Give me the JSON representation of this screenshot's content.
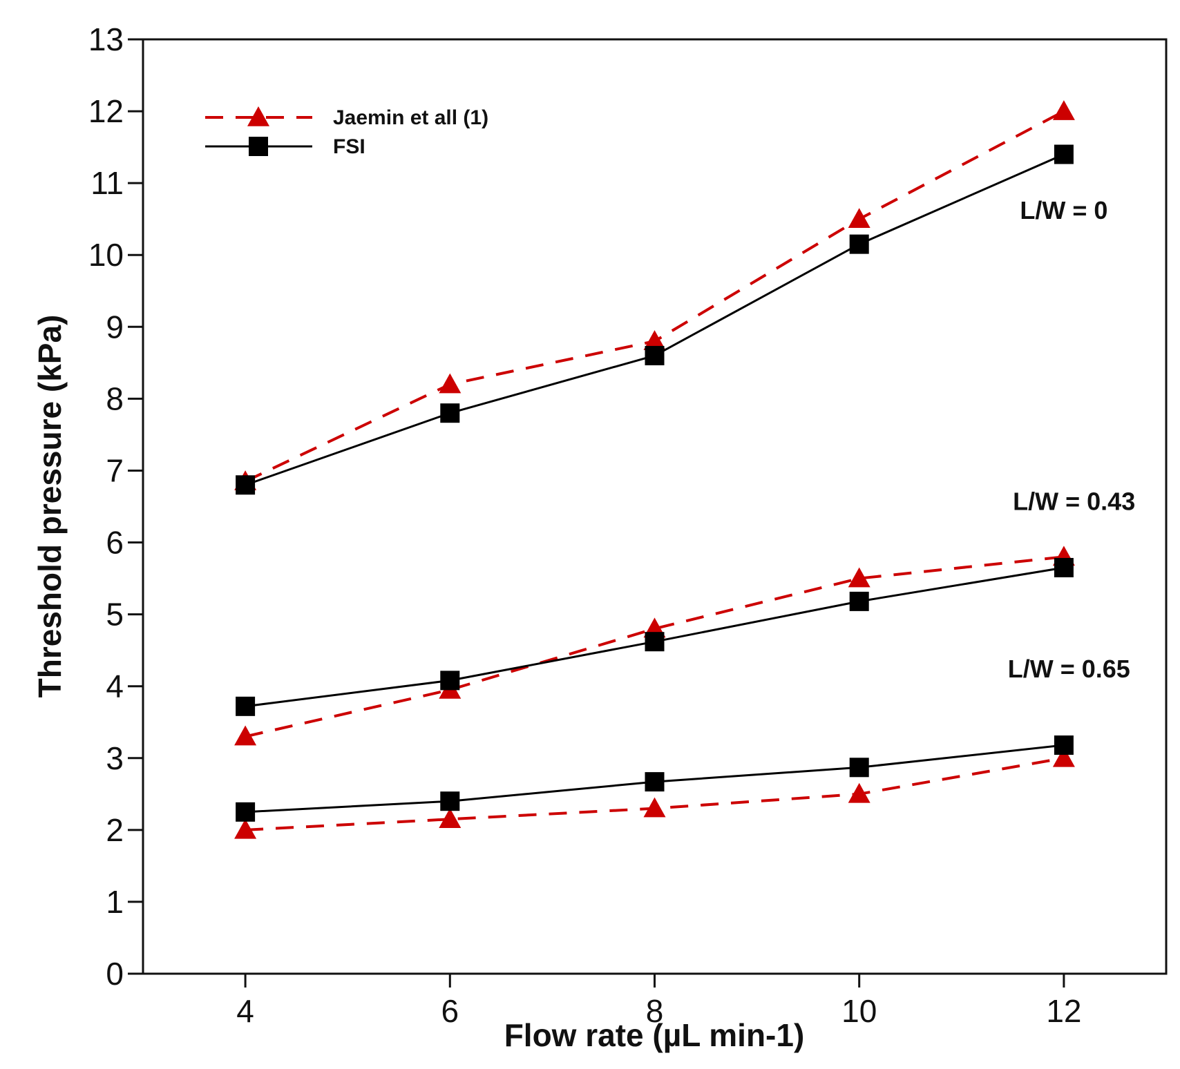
{
  "chart_data": {
    "type": "line",
    "title": "",
    "xlabel": "Flow rate (µL min-1)",
    "ylabel": "Threshold pressure (kPa)",
    "xlim": [
      3,
      13
    ],
    "ylim": [
      0,
      13
    ],
    "x_ticks": [
      4,
      6,
      8,
      10,
      12
    ],
    "y_ticks": [
      0,
      1,
      2,
      3,
      4,
      5,
      6,
      7,
      8,
      9,
      10,
      11,
      12,
      13
    ],
    "grid": false,
    "legend_position": "top-left",
    "colors": {
      "jaemin": "#cc0000",
      "fsi": "#000000"
    },
    "legend": [
      {
        "label": "Jaemin et all (1)",
        "key": "jaemin"
      },
      {
        "label": "FSI",
        "key": "fsi"
      }
    ],
    "series": [
      {
        "name": "Jaemin et all (1)",
        "key": "jaemin",
        "group": "L/W = 0",
        "marker": "triangle",
        "dash": true,
        "x": [
          4,
          6,
          8,
          10,
          12
        ],
        "y": [
          6.85,
          8.2,
          8.8,
          10.5,
          12.0
        ]
      },
      {
        "name": "FSI",
        "key": "fsi",
        "group": "L/W = 0",
        "marker": "square",
        "dash": false,
        "x": [
          4,
          6,
          8,
          10,
          12
        ],
        "y": [
          6.8,
          7.8,
          8.6,
          10.15,
          11.4
        ]
      },
      {
        "name": "Jaemin et all (1)",
        "key": "jaemin",
        "group": "L/W = 0.43",
        "marker": "triangle",
        "dash": true,
        "x": [
          4,
          6,
          8,
          10,
          12
        ],
        "y": [
          3.3,
          3.95,
          4.8,
          5.5,
          5.8
        ]
      },
      {
        "name": "FSI",
        "key": "fsi",
        "group": "L/W = 0.43",
        "marker": "square",
        "dash": false,
        "x": [
          4,
          6,
          8,
          10,
          12
        ],
        "y": [
          3.72,
          4.08,
          4.62,
          5.18,
          5.65
        ]
      },
      {
        "name": "Jaemin et all (1)",
        "key": "jaemin",
        "group": "L/W = 0.65",
        "marker": "triangle",
        "dash": true,
        "x": [
          4,
          6,
          8,
          10,
          12
        ],
        "y": [
          2.0,
          2.15,
          2.3,
          2.5,
          3.0
        ]
      },
      {
        "name": "FSI",
        "key": "fsi",
        "group": "L/W = 0.65",
        "marker": "square",
        "dash": false,
        "x": [
          4,
          6,
          8,
          10,
          12
        ],
        "y": [
          2.25,
          2.4,
          2.67,
          2.87,
          3.18
        ]
      }
    ],
    "annotations": [
      {
        "text": "L/W = 0",
        "x": 12.0,
        "y": 10.5
      },
      {
        "text": "L/W = 0.43",
        "x": 12.1,
        "y": 6.45
      },
      {
        "text": "L/W = 0.65",
        "x": 12.05,
        "y": 4.12
      }
    ]
  }
}
